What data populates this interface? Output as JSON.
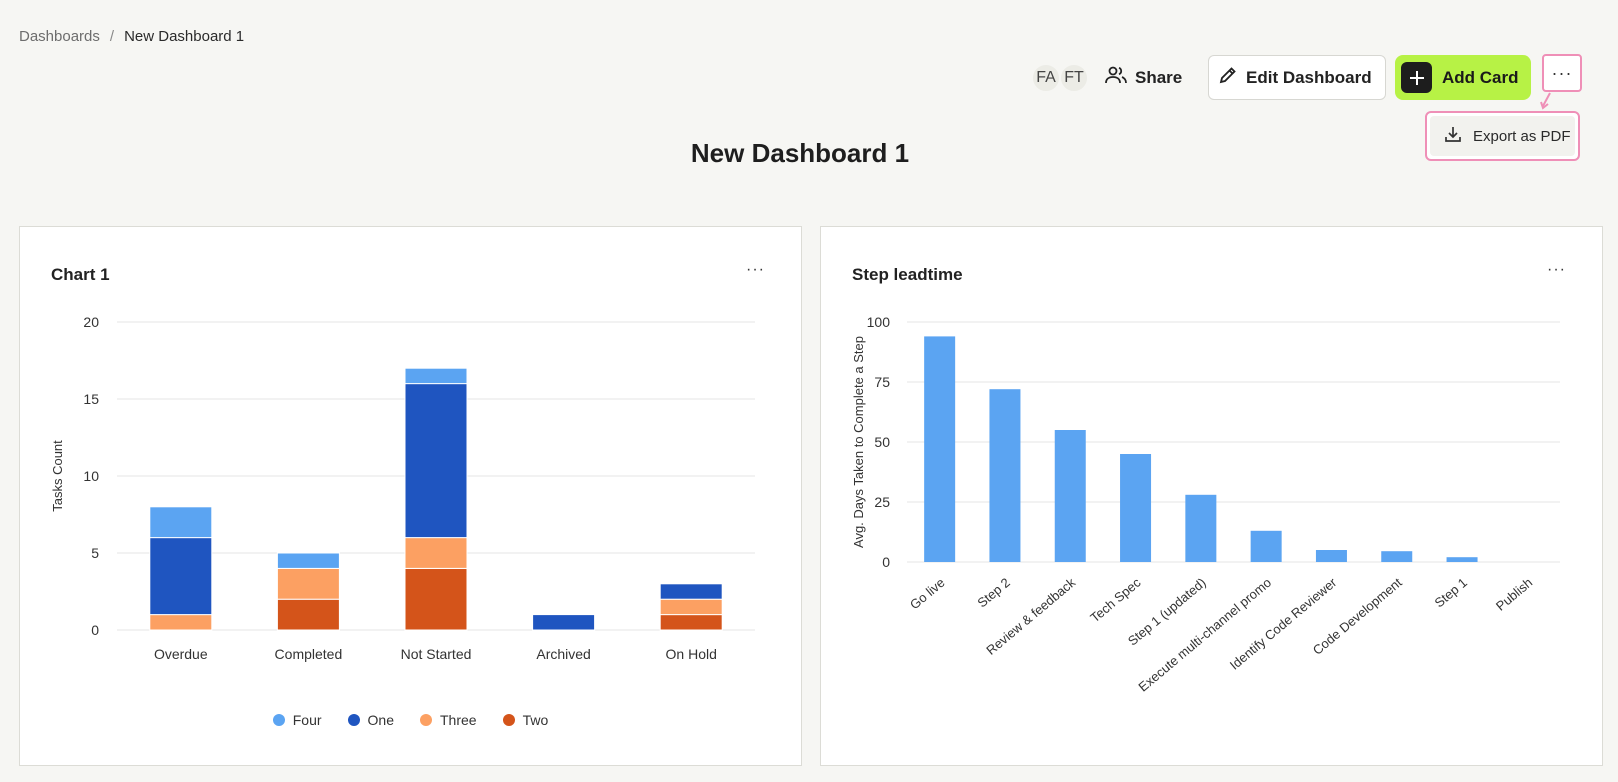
{
  "breadcrumb": {
    "parent": "Dashboards",
    "separator": "/",
    "current": "New Dashboard 1"
  },
  "toolbar": {
    "avatars": [
      "FA",
      "FT"
    ],
    "share_label": "Share",
    "edit_label": "Edit Dashboard",
    "add_label": "Add Card",
    "more_label": "···"
  },
  "export_menu": {
    "export_pdf_label": "Export as PDF"
  },
  "page_title": "New Dashboard 1",
  "colors": {
    "accent_green": "#b7f245",
    "highlight_pink": "#ef8fb7",
    "bar_blue": "#5ba4f2"
  },
  "cards": [
    {
      "title": "Chart 1",
      "menu_label": "···"
    },
    {
      "title": "Step leadtime",
      "menu_label": "···"
    }
  ],
  "chart_data": [
    {
      "type": "bar",
      "stacked": true,
      "title": "Chart 1",
      "ylabel": "Tasks Count",
      "ylim": [
        0,
        20
      ],
      "yticks": [
        0,
        5,
        10,
        15,
        20
      ],
      "categories": [
        "Overdue",
        "Completed",
        "Not Started",
        "Archived",
        "On Hold"
      ],
      "series": [
        {
          "name": "Two",
          "color": "#d4541a",
          "values": [
            0,
            2,
            4,
            0,
            1
          ]
        },
        {
          "name": "Three",
          "color": "#fca062",
          "values": [
            1,
            2,
            2,
            0,
            1
          ]
        },
        {
          "name": "One",
          "color": "#1f55c0",
          "values": [
            5,
            0,
            10,
            1,
            1
          ]
        },
        {
          "name": "Four",
          "color": "#5ba4f2",
          "values": [
            2,
            1,
            1,
            0,
            0
          ]
        }
      ],
      "legend": [
        "Four",
        "One",
        "Three",
        "Two"
      ],
      "legend_position": "bottom",
      "grid": true
    },
    {
      "type": "bar",
      "title": "Step leadtime",
      "ylabel": "Avg. Days Taken to Complete a Step",
      "ylim": [
        0,
        100
      ],
      "yticks": [
        0,
        25,
        50,
        75,
        100
      ],
      "categories": [
        "Go live",
        "Step 2",
        "Review & feedback",
        "Tech Spec",
        "Step 1 (updated)",
        "Execute multi-channel promo",
        "Identify Code Reviewer",
        "Code Development",
        "Step 1",
        "Publish"
      ],
      "values": [
        94,
        72,
        55,
        45,
        28,
        13,
        5,
        4.5,
        2,
        0
      ],
      "color": "#5ba4f2",
      "grid": true
    }
  ]
}
